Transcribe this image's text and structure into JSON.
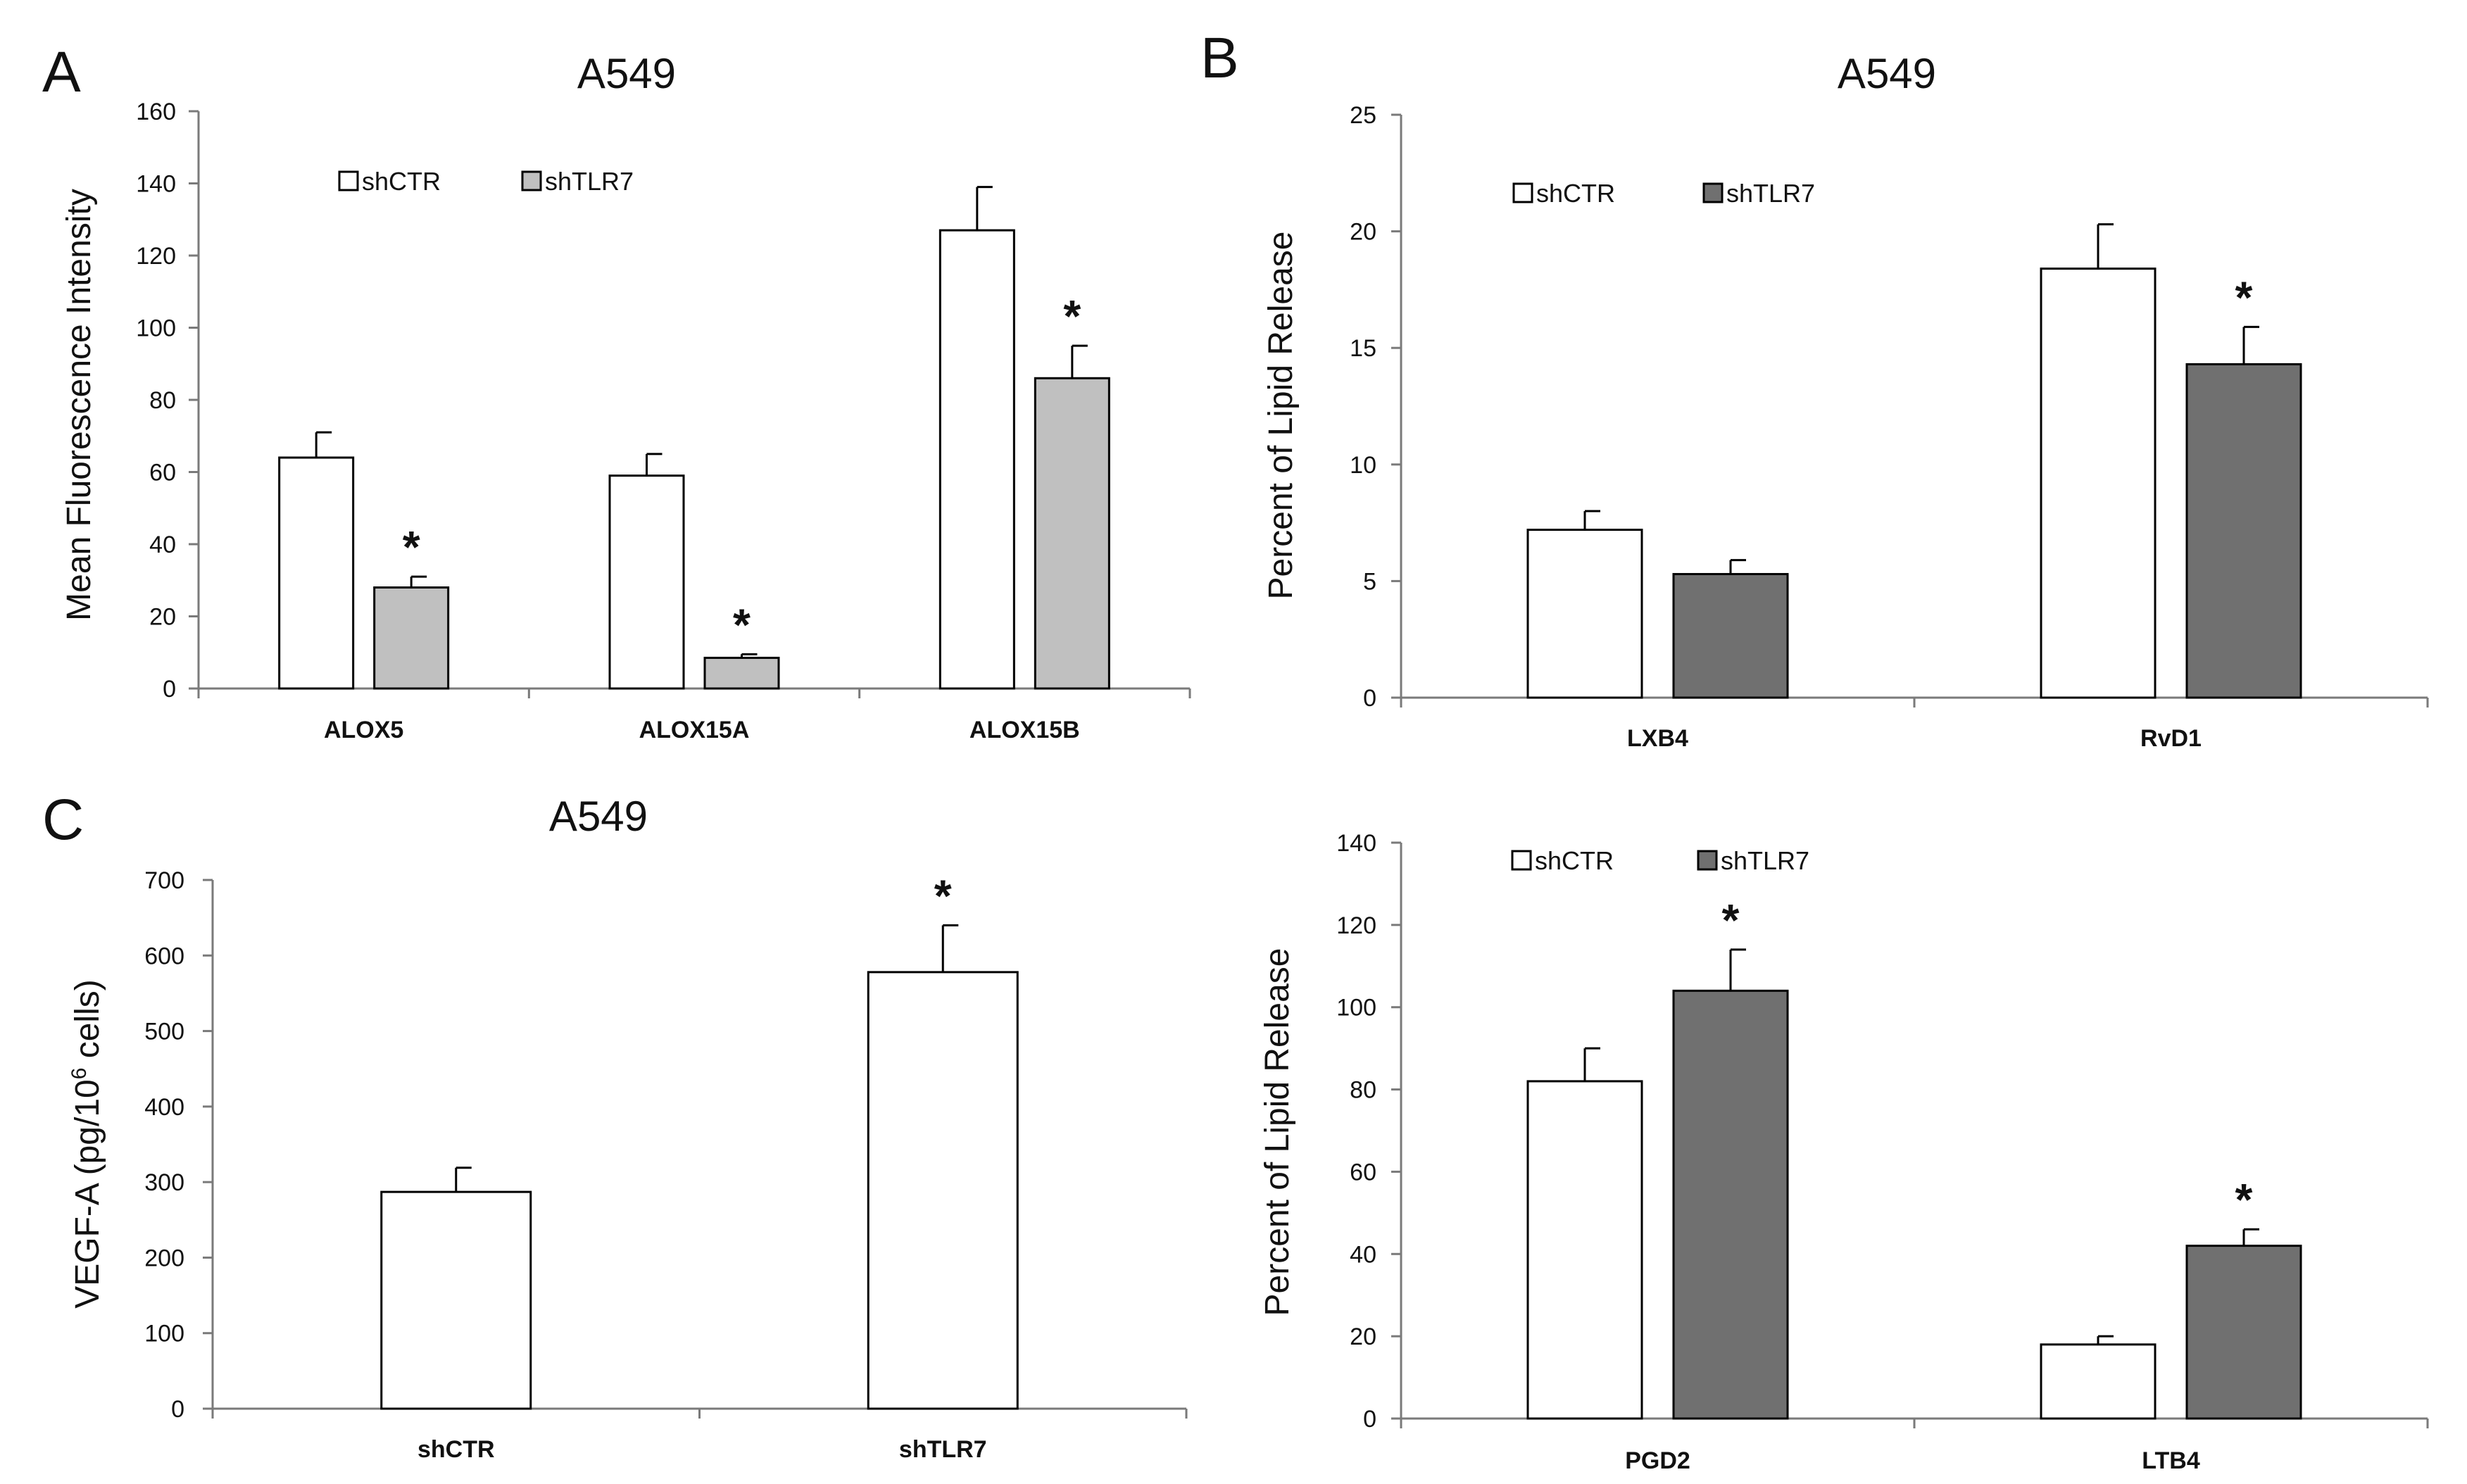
{
  "figure": {
    "panel_letters": [
      "A",
      "B",
      "C"
    ]
  },
  "chart_data": [
    {
      "id": "A",
      "type": "bar",
      "title": "A549",
      "ylabel": "Mean Fluorescence Intensity",
      "xlabel": "",
      "ylim": [
        0,
        160
      ],
      "yticks": [
        0,
        20,
        40,
        60,
        80,
        100,
        120,
        140,
        160
      ],
      "categories": [
        "ALOX5",
        "ALOX15A",
        "ALOX15B"
      ],
      "series": [
        {
          "name": "shCTR",
          "color": "#ffffff",
          "values": [
            64,
            59,
            127
          ],
          "errors": [
            7,
            6,
            12
          ],
          "significant": [
            false,
            false,
            false
          ]
        },
        {
          "name": "shTLR7",
          "color": "#c0c0c0",
          "values": [
            28,
            8.5,
            86
          ],
          "errors": [
            3,
            1,
            9
          ],
          "significant": [
            true,
            true,
            true
          ]
        }
      ],
      "significance_marker": "*",
      "legend": "top-left"
    },
    {
      "id": "B",
      "type": "bar",
      "title": "A549",
      "ylabel": "Percent of Lipid Release",
      "xlabel": "",
      "ylim": [
        0,
        25
      ],
      "yticks": [
        0,
        5,
        10,
        15,
        20,
        25
      ],
      "categories": [
        "LXB4",
        "RvD1"
      ],
      "series": [
        {
          "name": "shCTR",
          "color": "#ffffff",
          "values": [
            7.2,
            18.4
          ],
          "errors": [
            0.8,
            1.9
          ],
          "significant": [
            false,
            false
          ]
        },
        {
          "name": "shTLR7",
          "color": "#707070",
          "values": [
            5.3,
            14.3
          ],
          "errors": [
            0.6,
            1.6
          ],
          "significant": [
            false,
            true
          ]
        }
      ],
      "significance_marker": "*",
      "legend": "top-left"
    },
    {
      "id": "C",
      "type": "bar",
      "title": "A549",
      "ylabel": "VEGF-A (pg/10",
      "ylabel_sup": "6",
      "ylabel_tail": " cells)",
      "xlabel": "",
      "ylim": [
        0,
        700
      ],
      "yticks": [
        0,
        100,
        200,
        300,
        400,
        500,
        600,
        700
      ],
      "categories": [
        "shCTR",
        "shTLR7"
      ],
      "series": [
        {
          "name": "VEGF-A",
          "color": "#ffffff",
          "values": [
            287,
            578
          ],
          "errors": [
            32,
            62
          ],
          "significant": [
            false,
            true
          ]
        }
      ],
      "significance_marker": "*",
      "legend": "none"
    },
    {
      "id": "D",
      "type": "bar",
      "title": "",
      "ylabel": "Percent of Lipid Release",
      "xlabel": "",
      "ylim": [
        0,
        140
      ],
      "yticks": [
        0,
        20,
        40,
        60,
        80,
        100,
        120,
        140
      ],
      "categories": [
        "PGD2",
        "LTB4"
      ],
      "series": [
        {
          "name": "shCTR",
          "color": "#ffffff",
          "values": [
            82,
            18
          ],
          "errors": [
            8,
            2
          ],
          "significant": [
            false,
            false
          ]
        },
        {
          "name": "shTLR7",
          "color": "#707070",
          "values": [
            104,
            42
          ],
          "errors": [
            10,
            4
          ],
          "significant": [
            true,
            true
          ]
        }
      ],
      "significance_marker": "*",
      "legend": "top-left"
    }
  ]
}
